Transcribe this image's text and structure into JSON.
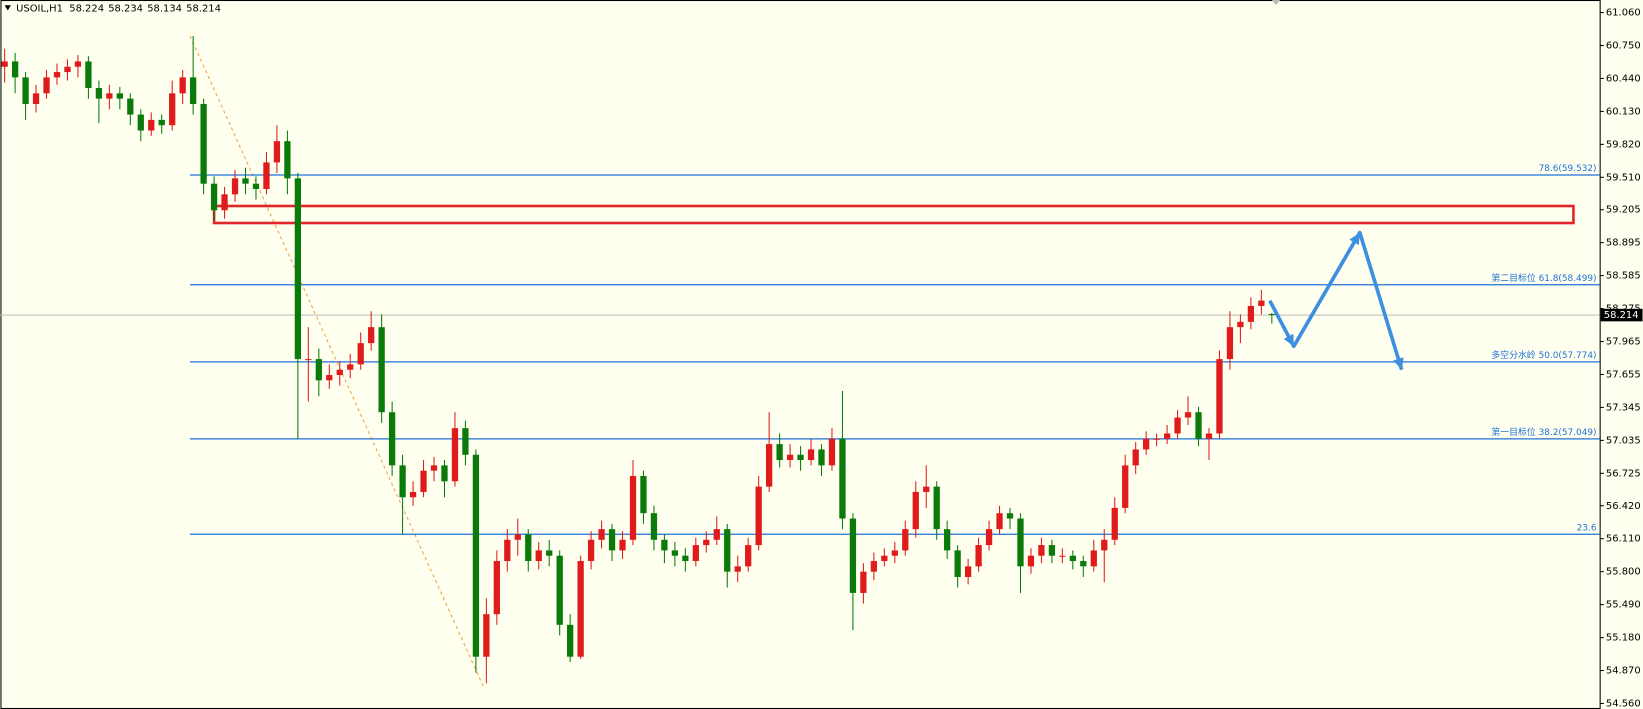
{
  "chart_data": {
    "type": "candlestick",
    "symbol": "USOIL,H1",
    "quote": [
      58.224,
      58.234,
      58.134,
      58.214
    ],
    "up_color": "#e01b1b",
    "down_color": "#0a7a0a",
    "ylim": [
      54.508,
      61.178
    ],
    "yticks": [
      {
        "value": 61.06,
        "label": "61.060"
      },
      {
        "value": 60.75,
        "label": "60.750"
      },
      {
        "value": 60.44,
        "label": "60.440"
      },
      {
        "value": 60.13,
        "label": "60.130"
      },
      {
        "value": 59.82,
        "label": "59.820"
      },
      {
        "value": 59.51,
        "label": "59.510"
      },
      59.205,
      58.895,
      58.585,
      58.275,
      57.965,
      57.655,
      57.345,
      57.035,
      56.725,
      {
        "value": 56.42,
        "label": "56.420"
      },
      {
        "value": 56.11,
        "label": "56.110"
      },
      {
        "value": 55.8,
        "label": "55.800"
      },
      {
        "value": 55.49,
        "label": "55.490"
      },
      {
        "value": 55.18,
        "label": "55.180"
      },
      {
        "value": 54.87,
        "label": "54.870"
      },
      {
        "value": 54.56,
        "label": "54.560"
      }
    ],
    "fib_levels": [
      {
        "label": "78.6(59.532)",
        "value": 59.532
      },
      {
        "label": "第二目标位 61.8(58.499)",
        "value": 58.499
      },
      {
        "label": "多空分水岭 50.0(57.774)",
        "value": 57.774
      },
      {
        "label": "第一目标位 38.2(57.049)",
        "value": 57.049
      },
      {
        "label": "23.6",
        "value": 56.152
      }
    ],
    "fib_color": "#1e72d8",
    "fib_anchor": [
      60.84,
      54.7
    ],
    "resistance_zone": [
      59.08,
      59.24
    ],
    "projection": [
      58.35,
      57.92,
      58.99,
      57.7
    ],
    "candles": [
      [
        60.55,
        60.72,
        60.4,
        60.6
      ],
      [
        60.6,
        60.68,
        60.3,
        60.45
      ],
      [
        60.45,
        60.5,
        60.05,
        60.2
      ],
      [
        60.2,
        60.38,
        60.12,
        60.3
      ],
      [
        60.3,
        60.52,
        60.25,
        60.45
      ],
      [
        60.45,
        60.58,
        60.38,
        60.5
      ],
      [
        60.5,
        60.62,
        60.42,
        60.55
      ],
      [
        60.55,
        60.66,
        60.45,
        60.6
      ],
      [
        60.6,
        60.65,
        60.25,
        60.35
      ],
      [
        60.35,
        60.42,
        60.02,
        60.25
      ],
      [
        60.25,
        60.38,
        60.15,
        60.3
      ],
      [
        60.3,
        60.36,
        60.15,
        60.25
      ],
      [
        60.25,
        60.3,
        60.0,
        60.1
      ],
      [
        60.1,
        60.15,
        59.85,
        59.95
      ],
      [
        59.95,
        60.12,
        59.9,
        60.05
      ],
      [
        60.05,
        60.1,
        59.92,
        60.0
      ],
      [
        60.0,
        60.42,
        59.95,
        60.3
      ],
      [
        60.3,
        60.52,
        60.2,
        60.45
      ],
      [
        60.45,
        60.84,
        60.1,
        60.2
      ],
      [
        60.2,
        60.25,
        59.35,
        59.45
      ],
      [
        59.45,
        59.52,
        59.1,
        59.2
      ],
      [
        59.2,
        59.42,
        59.12,
        59.35
      ],
      [
        59.35,
        59.58,
        59.28,
        59.5
      ],
      [
        59.5,
        59.6,
        59.35,
        59.45
      ],
      [
        59.45,
        59.52,
        59.3,
        59.4
      ],
      [
        59.4,
        59.75,
        59.35,
        59.65
      ],
      [
        59.65,
        60.0,
        59.55,
        59.85
      ],
      [
        59.85,
        59.95,
        59.35,
        59.5
      ],
      [
        59.5,
        59.55,
        57.05,
        57.8
      ],
      [
        57.8,
        58.1,
        57.4,
        57.8
      ],
      [
        57.8,
        57.9,
        57.45,
        57.6
      ],
      [
        57.6,
        57.75,
        57.52,
        57.65
      ],
      [
        57.65,
        57.78,
        57.55,
        57.7
      ],
      [
        57.7,
        57.85,
        57.62,
        57.75
      ],
      [
        57.75,
        58.05,
        57.7,
        57.95
      ],
      [
        57.95,
        58.25,
        57.88,
        58.1
      ],
      [
        58.1,
        58.22,
        57.2,
        57.3
      ],
      [
        57.3,
        57.4,
        56.7,
        56.8
      ],
      [
        56.8,
        56.9,
        56.15,
        56.5
      ],
      [
        56.5,
        56.65,
        56.42,
        56.55
      ],
      [
        56.55,
        56.85,
        56.5,
        56.75
      ],
      [
        56.75,
        56.88,
        56.65,
        56.8
      ],
      [
        56.8,
        56.85,
        56.5,
        56.65
      ],
      [
        56.65,
        57.3,
        56.6,
        57.15
      ],
      [
        57.15,
        57.22,
        56.8,
        56.9
      ],
      [
        56.9,
        56.95,
        54.85,
        55.0
      ],
      [
        55.0,
        55.55,
        54.75,
        55.4
      ],
      [
        55.4,
        56.0,
        55.3,
        55.9
      ],
      [
        55.9,
        56.2,
        55.8,
        56.1
      ],
      [
        56.1,
        56.3,
        55.95,
        56.15
      ],
      [
        56.15,
        56.2,
        55.8,
        55.9
      ],
      [
        55.9,
        56.08,
        55.82,
        56.0
      ],
      [
        56.0,
        56.1,
        55.85,
        55.95
      ],
      [
        55.95,
        56.0,
        55.2,
        55.3
      ],
      [
        55.3,
        55.4,
        54.95,
        55.0
      ],
      [
        55.0,
        55.95,
        54.98,
        55.9
      ],
      [
        55.9,
        56.18,
        55.82,
        56.1
      ],
      [
        56.1,
        56.28,
        56.02,
        56.2
      ],
      [
        56.2,
        56.25,
        55.9,
        56.0
      ],
      [
        56.0,
        56.18,
        55.92,
        56.1
      ],
      [
        56.1,
        56.85,
        56.05,
        56.7
      ],
      [
        56.7,
        56.75,
        56.25,
        56.35
      ],
      [
        56.35,
        56.42,
        56.0,
        56.1
      ],
      [
        56.1,
        56.15,
        55.88,
        56.0
      ],
      [
        56.0,
        56.08,
        55.85,
        55.95
      ],
      [
        55.95,
        56.02,
        55.8,
        55.9
      ],
      [
        55.9,
        56.12,
        55.85,
        56.05
      ],
      [
        56.05,
        56.18,
        55.98,
        56.1
      ],
      [
        56.1,
        56.32,
        56.05,
        56.2
      ],
      [
        56.2,
        56.25,
        55.65,
        55.8
      ],
      [
        55.8,
        55.95,
        55.7,
        55.85
      ],
      [
        55.85,
        56.12,
        55.8,
        56.05
      ],
      [
        56.05,
        56.7,
        56.0,
        56.6
      ],
      [
        56.6,
        57.3,
        56.55,
        57.0
      ],
      [
        57.0,
        57.1,
        56.78,
        56.85
      ],
      [
        56.85,
        57.0,
        56.78,
        56.9
      ],
      [
        56.9,
        56.98,
        56.75,
        56.85
      ],
      [
        56.85,
        57.05,
        56.8,
        56.95
      ],
      [
        56.95,
        57.0,
        56.7,
        56.8
      ],
      [
        56.8,
        57.15,
        56.75,
        57.05
      ],
      [
        57.05,
        57.5,
        56.2,
        56.3
      ],
      [
        56.3,
        56.35,
        55.25,
        55.6
      ],
      [
        55.6,
        55.88,
        55.5,
        55.8
      ],
      [
        55.8,
        55.98,
        55.72,
        55.9
      ],
      [
        55.9,
        56.02,
        55.85,
        55.95
      ],
      [
        55.95,
        56.08,
        55.88,
        56.0
      ],
      [
        56.0,
        56.28,
        55.95,
        56.2
      ],
      [
        56.2,
        56.65,
        56.12,
        56.55
      ],
      [
        56.55,
        56.8,
        56.4,
        56.6
      ],
      [
        56.6,
        56.65,
        56.1,
        56.2
      ],
      [
        56.2,
        56.28,
        55.92,
        56.0
      ],
      [
        56.0,
        56.05,
        55.65,
        55.75
      ],
      [
        55.75,
        55.92,
        55.68,
        55.85
      ],
      [
        55.85,
        56.12,
        55.8,
        56.05
      ],
      [
        56.05,
        56.28,
        56.0,
        56.2
      ],
      [
        56.2,
        56.42,
        56.15,
        56.35
      ],
      [
        56.35,
        56.4,
        56.2,
        56.3
      ],
      [
        56.3,
        56.35,
        55.6,
        55.85
      ],
      [
        55.85,
        56.02,
        55.78,
        55.95
      ],
      [
        55.95,
        56.12,
        55.88,
        56.05
      ],
      [
        56.05,
        56.1,
        55.88,
        55.95
      ],
      [
        55.95,
        56.02,
        55.88,
        55.95
      ],
      [
        55.95,
        56.0,
        55.82,
        55.9
      ],
      [
        55.9,
        55.95,
        55.75,
        55.85
      ],
      [
        55.85,
        56.1,
        55.8,
        56.0
      ],
      [
        56.0,
        56.2,
        55.7,
        56.1
      ],
      [
        56.1,
        56.5,
        56.05,
        56.4
      ],
      [
        56.4,
        56.9,
        56.35,
        56.8
      ],
      [
        56.8,
        57.02,
        56.72,
        56.95
      ],
      [
        56.95,
        57.12,
        56.9,
        57.05
      ],
      [
        57.05,
        57.1,
        56.98,
        57.05
      ],
      [
        57.05,
        57.18,
        57.0,
        57.1
      ],
      [
        57.1,
        57.32,
        57.05,
        57.25
      ],
      [
        57.25,
        57.45,
        57.18,
        57.3
      ],
      [
        57.3,
        57.35,
        56.98,
        57.05
      ],
      [
        57.05,
        57.15,
        56.85,
        57.1
      ],
      [
        57.1,
        57.88,
        57.05,
        57.8
      ],
      [
        57.8,
        58.25,
        57.7,
        58.1
      ],
      [
        58.1,
        58.22,
        57.95,
        58.15
      ],
      [
        58.15,
        58.38,
        58.08,
        58.3
      ],
      [
        58.3,
        58.45,
        58.22,
        58.35
      ],
      [
        58.224,
        58.234,
        58.134,
        58.214
      ]
    ]
  }
}
